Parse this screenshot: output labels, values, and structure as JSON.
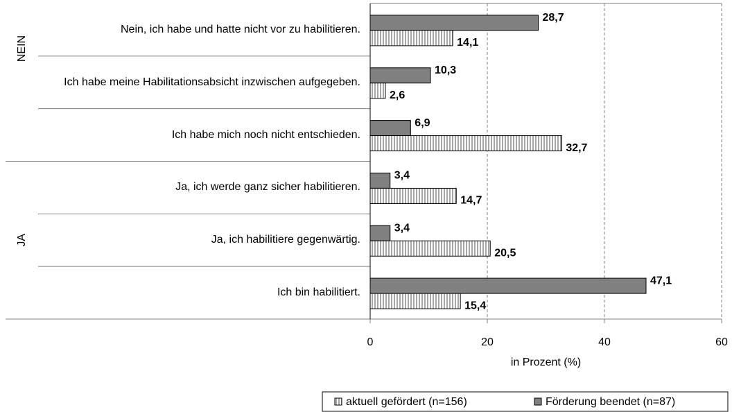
{
  "chart_data": {
    "type": "bar",
    "orientation": "horizontal",
    "groups": [
      "NEIN",
      "JA"
    ],
    "categories": [
      "Nein, ich habe und hatte nicht vor zu habilitieren.",
      "Ich habe meine Habilitationsabsicht inzwischen aufgegeben.",
      "Ich habe mich noch nicht entschieden.",
      "Ja, ich werde ganz sicher habilitieren.",
      "Ja, ich habilitiere gegenwärtig.",
      "Ich bin habilitiert."
    ],
    "series": [
      {
        "name": "aktuell gefördert (n=156)",
        "color": "#d9d9d9",
        "pattern": "vertical-stripes",
        "values": [
          14.1,
          2.6,
          32.7,
          14.7,
          20.5,
          15.4
        ],
        "value_labels": [
          "14,1",
          "2,6",
          "32,7",
          "14,7",
          "20,5",
          "15,4"
        ]
      },
      {
        "name": "Förderung beendet (n=87)",
        "color": "#808080",
        "values": [
          28.7,
          10.3,
          6.9,
          3.4,
          3.4,
          47.1
        ],
        "value_labels": [
          "28,7",
          "10,3",
          "6,9",
          "3,4",
          "3,4",
          "47,1"
        ]
      }
    ],
    "xlabel": "in Prozent (%)",
    "xlim": [
      0,
      60
    ],
    "xticks": [
      0,
      20,
      40,
      60
    ],
    "grid": true,
    "legend": "bottom-right"
  }
}
